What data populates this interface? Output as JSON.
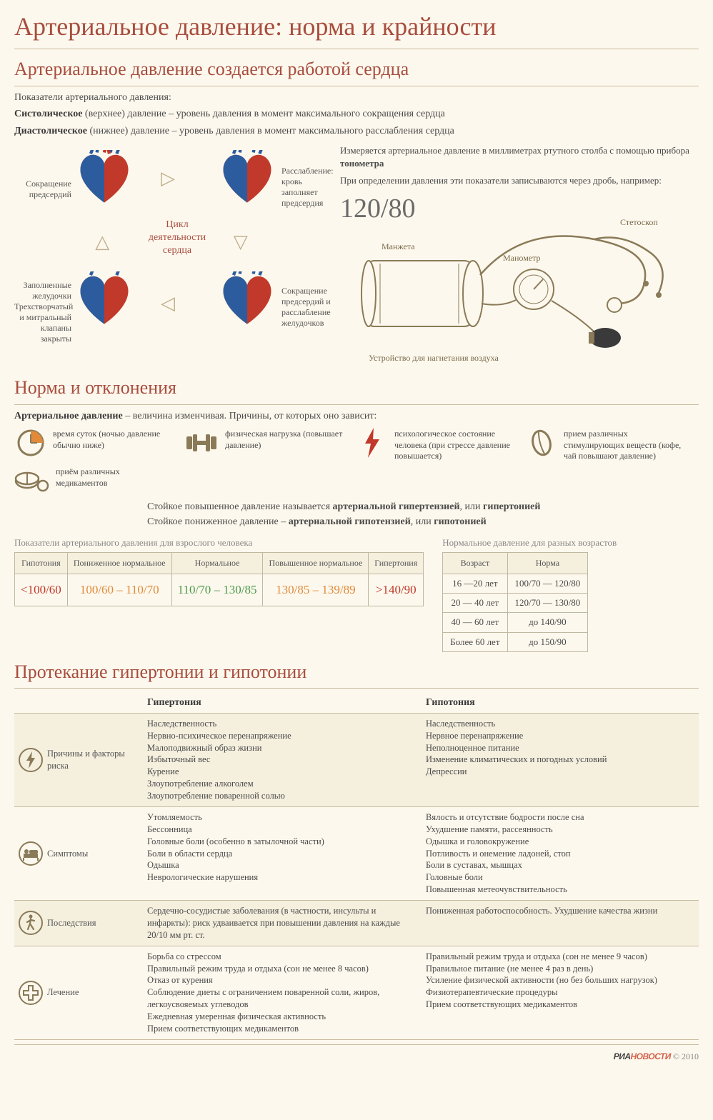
{
  "colors": {
    "background": "#fdf8ed",
    "stripe": "#f5efde",
    "accent": "#a84d3e",
    "text": "#4a4a4a",
    "border": "#c8bba0",
    "heart_red": "#c1392b",
    "heart_blue": "#2d5c9e",
    "icon_brown": "#8a7a58",
    "icon_orange": "#e08a3a",
    "red": "#c0392b",
    "orange": "#e08a3a",
    "green": "#4a9a4a"
  },
  "title": "Артериальное давление: норма и крайности",
  "section1": {
    "heading": "Артериальное давление создается работой сердца",
    "intro": "Показатели артериального давления:",
    "systolic_bold": "Систолическое",
    "systolic_rest": " (верхнее) давление – уровень давления в момент максимального сокращения сердца",
    "diastolic_bold": "Диастолическое",
    "diastolic_rest": " (нижнее) давление – уровень давления в момент максимального расслабления сердца",
    "cycle_label": "Цикл деятельности сердца",
    "hearts": {
      "h1": "Сокращение предсердий",
      "h2": "Расслабление: кровь заполняет предсердия",
      "h3": "Заполненные желудочки Трехстворчатый и митральный клапаны закрыты",
      "h4": "Сокращение предсердий и расслабление желудочков"
    },
    "tono": {
      "line1": "Измеряется артериальное давление в миллиметрах ртутного столба с помощью прибора ",
      "line1_bold": "тонометра",
      "line2": "При определении давления эти показатели записываются через дробь, например:",
      "example": "120/80",
      "labels": {
        "cuff": "Манжета",
        "stethoscope": "Стетоскоп",
        "manometer": "Манометр",
        "pump": "Устройство для нагнетания воздуха"
      }
    }
  },
  "section2": {
    "heading": "Норма и отклонения",
    "intro_bold": "Артериальное давление",
    "intro_rest": " – величина изменчивая. Причины, от которых оно зависит:",
    "factors": [
      {
        "icon": "clock",
        "text": "время суток (ночью давление обычно ниже)"
      },
      {
        "icon": "dumbbell",
        "text": "физическая нагрузка (повышает давление)"
      },
      {
        "icon": "bolt",
        "text": "психологическое состояние человека (при стрессе давление повышается)"
      },
      {
        "icon": "bean",
        "text": "прием различных стимулирующих веществ (кофе, чай повышают давление)"
      },
      {
        "icon": "pills",
        "text": "приём различных медикаментов"
      }
    ],
    "defs_line1_a": "Стойкое повышенное давление называется ",
    "defs_line1_b": "артериальной гипертензией",
    "defs_line1_c": ", или ",
    "defs_line1_d": "гипертонией",
    "defs_line2_a": "Стойкое пониженное давление – ",
    "defs_line2_b": "артериальной гипотензией",
    "defs_line2_c": ", или ",
    "defs_line2_d": "гипотонией",
    "table_adult": {
      "caption": "Показатели артериального давления для взрослого человека",
      "headers": [
        "Гипотония",
        "Пониженное нормальное",
        "Нормальное",
        "Повышенное нормальное",
        "Гипертония"
      ],
      "values": [
        "<100/60",
        "100/60 – 110/70",
        "110/70 – 130/85",
        "130/85 – 139/89",
        ">140/90"
      ],
      "value_colors": [
        "#c0392b",
        "#e08a3a",
        "#4a9a4a",
        "#e08a3a",
        "#c0392b"
      ]
    },
    "table_age": {
      "caption": "Нормальное давление для разных возрастов",
      "headers": [
        "Возраст",
        "Норма"
      ],
      "rows": [
        [
          "16 —20 лет",
          "100/70 — 120/80"
        ],
        [
          "20 — 40 лет",
          "120/70 — 130/80"
        ],
        [
          "40 — 60 лет",
          "до 140/90"
        ],
        [
          "Более 60 лет",
          "до 150/90"
        ]
      ]
    }
  },
  "section3": {
    "heading": "Протекание гипертонии и гипотонии",
    "col1": "Гипертония",
    "col2": "Гипотония",
    "rows": [
      {
        "icon": "bolt-circle",
        "label": "Причины и факторы риска",
        "hyper": "Наследственность\nНервно-психическое перенапряжение\nМалоподвижный образ жизни\nИзбыточный вес\nКурение\nЗлоупотребление алкоголем\nЗлоупотребление поваренной солью",
        "hypo": "Наследственность\nНервное перенапряжение\nНеполноценное питание\nИзменение климатических и погодных условий\nДепрессии"
      },
      {
        "icon": "bed",
        "label": "Симптомы",
        "hyper": "Утомляемость\nБессонница\nГоловные боли (особенно в затылочной части)\nБоли в области сердца\nОдышка\nНеврологические нарушения",
        "hypo": "Вялость и отсутствие бодрости после сна\nУхудшение памяти, рассеянность\nОдышка и головокружение\nПотливость и онемение ладоней, стоп\nБоли в суставах, мышцах\nГоловные боли\nПовышенная метеочувствительность"
      },
      {
        "icon": "walk",
        "label": "Последствия",
        "hyper": "Сердечно-сосудистые заболевания (в частности, инсульты и инфаркты): риск удваивается при повышении давления на каждые 20/10 мм рт. ст.",
        "hypo": "Пониженная работоспособность. Ухудшение качества жизни"
      },
      {
        "icon": "cross",
        "label": "Лечение",
        "hyper": "Борьба со стрессом\nПравильный режим труда и отдыха (сон не менее 8 часов)\nОтказ от курения\nСоблюдение диеты с ограничением поваренной соли, жиров, легкоусвояемых углеводов\nЕжедневная умеренная физическая активность\nПрием соответствующих медикаментов",
        "hypo": "Правильный режим труда и отдыха (сон не менее 9 часов)\nПравильное питание (не менее 4 раз в день)\nУсиление физической активности (но без больших нагрузок)\nФизиотерапевтические процедуры\nПрием соответствующих медикаментов"
      }
    ]
  },
  "footer": {
    "ria": "РИА",
    "novosti": "НОВОСТИ",
    "copy": " © 2010"
  }
}
